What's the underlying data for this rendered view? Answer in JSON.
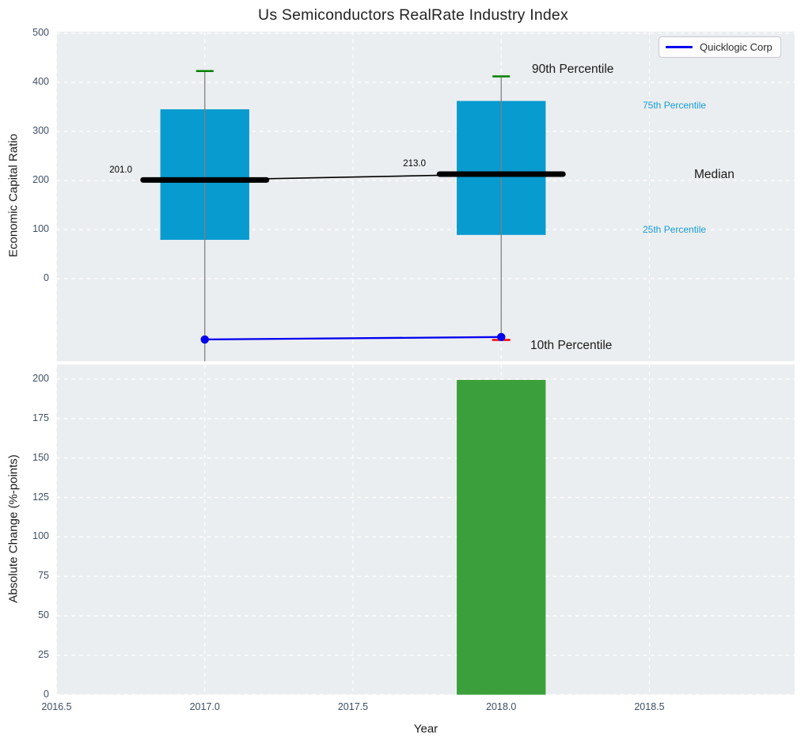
{
  "chart_data": [
    {
      "type": "box",
      "title": "Us Semiconductors RealRate Industry Index",
      "ylabel": "Economic Capital Ratio",
      "xlim": [
        2016.5,
        2018.99
      ],
      "ylim": [
        -168.5,
        503.2
      ],
      "yticks": [
        0,
        100,
        200,
        300,
        400,
        500
      ],
      "xticks": [
        "2016.5",
        "2017.0",
        "2017.5",
        "2018.0",
        "2018.5"
      ],
      "xtick_values": [
        2016.5,
        2017,
        2017.5,
        2018,
        2018.5
      ],
      "grid": "white dashed, on",
      "box_width_years": 0.3,
      "boxes": [
        {
          "year": 2017,
          "p90": 423,
          "p75": 345,
          "median": 201.0,
          "p25": 79,
          "p10": null,
          "p10_clipped_below_axis": true,
          "label": "201.0"
        },
        {
          "year": 2018,
          "p90": 412,
          "p75": 362,
          "median": 213.0,
          "p25": 89,
          "p10": -125,
          "p10_clipped_below_axis": false,
          "label": "213.0"
        }
      ],
      "series": [
        {
          "name": "Quicklogic Corp",
          "x": [
            2017,
            2018
          ],
          "values": [
            -124,
            -119
          ]
        }
      ],
      "annotations": {
        "p90": "90th Percentile",
        "p75": "75th Percentile",
        "median": "Median",
        "p25": "25th Percentile",
        "p10": "10th Percentile"
      },
      "legend": {
        "label": "Quicklogic Corp",
        "position": "upper right"
      }
    },
    {
      "type": "bar",
      "ylabel": "Absolute Change (%-points)",
      "xlabel": "Year",
      "xlim": [
        2016.5,
        2018.99
      ],
      "ylim": [
        0,
        209.3
      ],
      "yticks": [
        0,
        25,
        50,
        75,
        100,
        125,
        150,
        175,
        200
      ],
      "xticks": [
        "2016.5",
        "2017.0",
        "2017.5",
        "2018.0",
        "2018.5"
      ],
      "xtick_values": [
        2016.5,
        2017,
        2017.5,
        2018,
        2018.5
      ],
      "grid": "white dashed, on",
      "bar_width_years": 0.3,
      "categories": [
        2018
      ],
      "values": [
        199.5
      ]
    }
  ],
  "colors": {
    "box_fill": "#089bd0",
    "p90_cap_green": "#008000",
    "p10_cap_red": "#ff0000",
    "median_line": "#000000",
    "company_line_blue": "#0000ee",
    "bar_fill_green": "#3ba03b",
    "whisker_gray": "#808080",
    "plot_background": "#ebeef0",
    "gridline": "#ffffff",
    "tick_label": "#3e4f66",
    "percentile_label_blue": "#169bd5"
  }
}
